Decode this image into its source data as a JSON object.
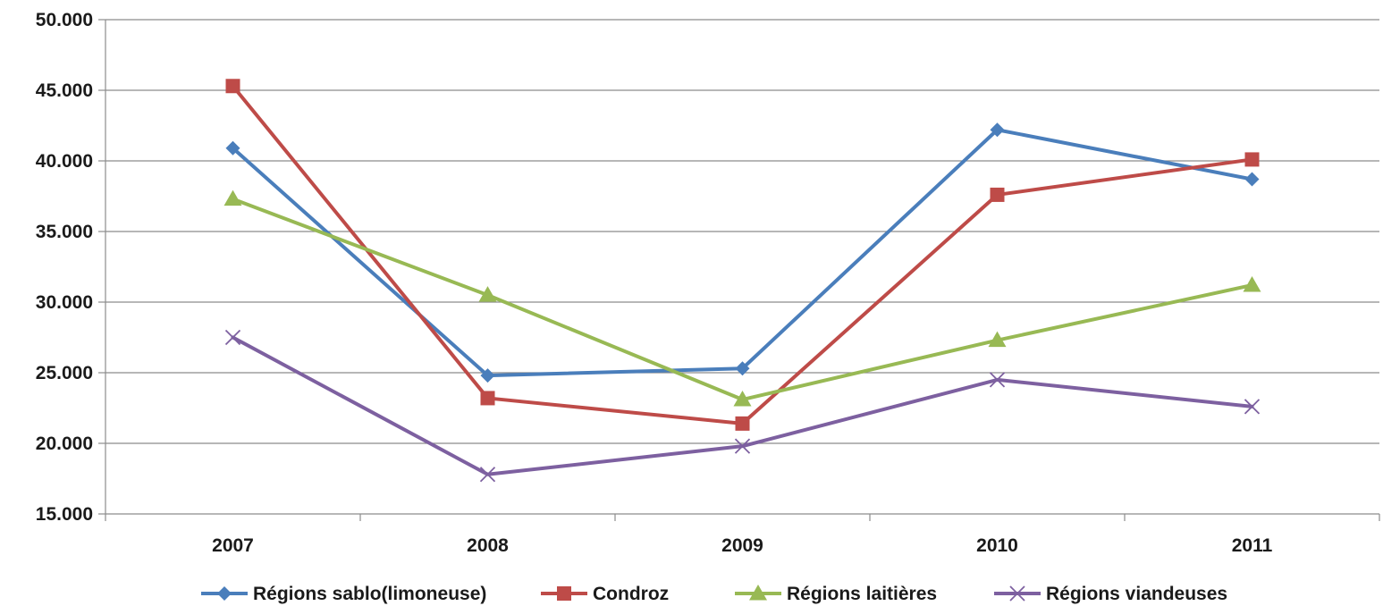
{
  "chart_data": {
    "type": "line",
    "title": "",
    "xlabel": "",
    "ylabel": "",
    "categories": [
      "2007",
      "2008",
      "2009",
      "2010",
      "2011"
    ],
    "ylim": [
      15000,
      50000
    ],
    "yticks": [
      15000,
      20000,
      25000,
      30000,
      35000,
      40000,
      45000,
      50000
    ],
    "ytick_labels": [
      "15.000",
      "20.000",
      "25.000",
      "30.000",
      "35.000",
      "40.000",
      "45.000",
      "50.000"
    ],
    "grid": "horizontal",
    "legend_position": "bottom",
    "series": [
      {
        "name": "Régions sablo(limoneuse)",
        "color": "#4a7ebb",
        "marker": "diamond",
        "values": [
          40900,
          24800,
          25300,
          42200,
          38700
        ]
      },
      {
        "name": "Condroz",
        "color": "#be4b48",
        "marker": "square",
        "values": [
          45300,
          23200,
          21400,
          37600,
          40100
        ]
      },
      {
        "name": "Régions laitières",
        "color": "#98b954",
        "marker": "triangle",
        "values": [
          37300,
          30500,
          23100,
          27300,
          31200
        ]
      },
      {
        "name": "Régions viandeuses",
        "color": "#7d60a0",
        "marker": "x",
        "values": [
          27500,
          17800,
          19800,
          24500,
          22600
        ]
      }
    ]
  }
}
